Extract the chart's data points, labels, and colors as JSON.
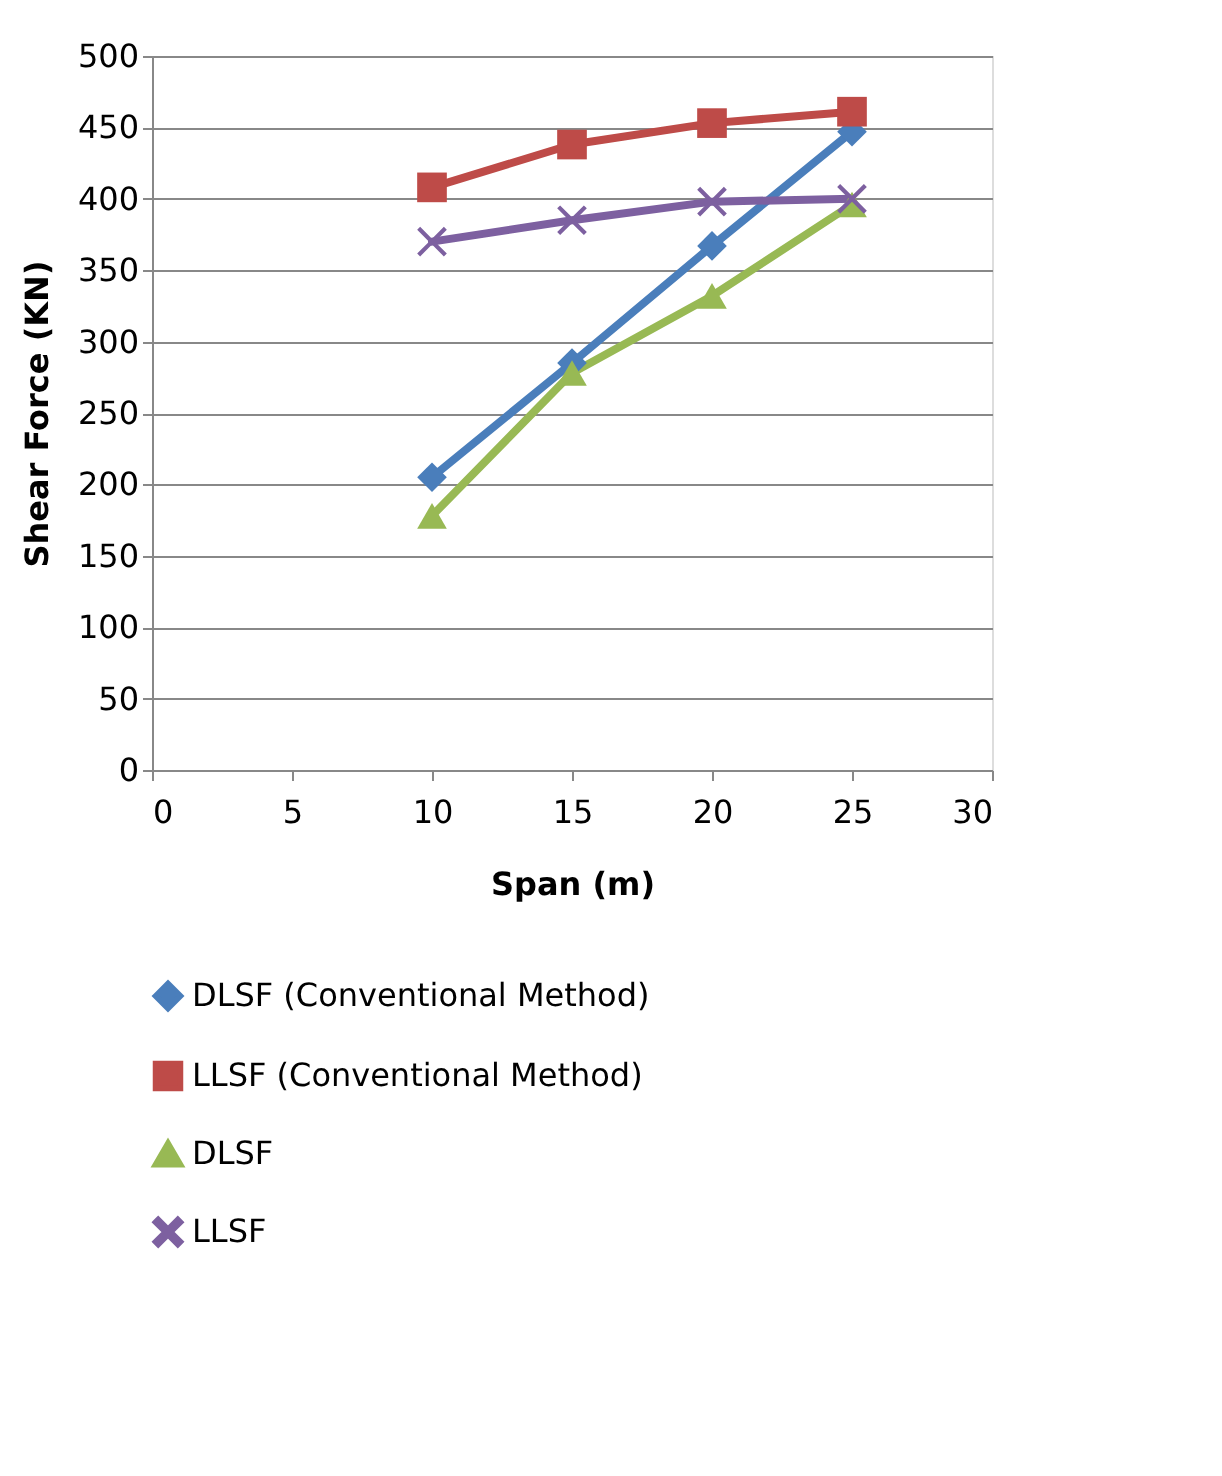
{
  "chart_data": {
    "type": "line",
    "xlabel": "Span (m)",
    "ylabel": "Shear Force (KN)",
    "xlim": [
      0,
      30
    ],
    "xticks": [
      0,
      5,
      10,
      15,
      20,
      25,
      30
    ],
    "ylim": [
      0,
      500
    ],
    "yticks": [
      0,
      50,
      100,
      150,
      200,
      250,
      300,
      350,
      400,
      450,
      500
    ],
    "grid": "y",
    "legend": "bottom",
    "line_style": "solid",
    "x": [
      10,
      15,
      20,
      25
    ],
    "series": [
      {
        "name": "DLSF (Conventional Method)",
        "color": "#4a7ebb",
        "marker": "diamond",
        "values": [
          205,
          285,
          367,
          447
        ]
      },
      {
        "name": "LLSF (Conventional Method)",
        "color": "#be4b48",
        "marker": "square",
        "values": [
          408,
          438,
          453,
          461
        ]
      },
      {
        "name": "DLSF",
        "color": "#98b954",
        "marker": "triangle",
        "values": [
          178,
          278,
          332,
          396
        ]
      },
      {
        "name": "LLSF",
        "color": "#7d60a0",
        "marker": "cross",
        "values": [
          370,
          385,
          398,
          400
        ]
      }
    ]
  }
}
